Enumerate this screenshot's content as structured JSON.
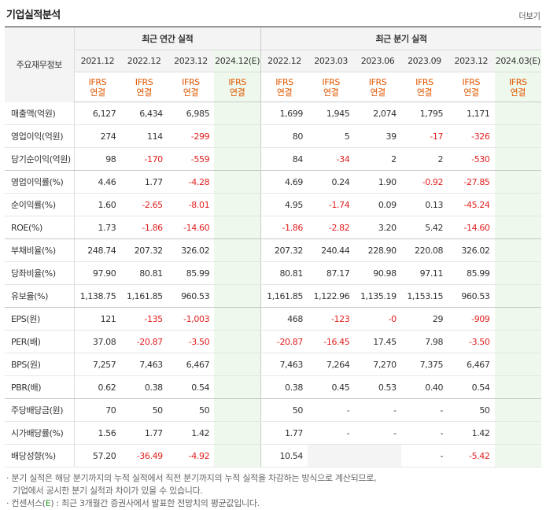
{
  "header": {
    "title": "기업실적분석",
    "more_label": "더보기"
  },
  "table": {
    "row_header_label": "주요재무정보",
    "groups": {
      "annual": "최근 연간 실적",
      "quarter": "최근 분기 실적"
    },
    "periods": [
      "2021.12",
      "2022.12",
      "2023.12",
      "2024.12(E)",
      "2022.12",
      "2023.03",
      "2023.06",
      "2023.09",
      "2023.12",
      "2024.03(E)"
    ],
    "ifrs_line1": "IFRS",
    "ifrs_line2": "연결",
    "rows": [
      {
        "label": "매출액(억원)",
        "values": [
          "6,127",
          "6,434",
          "6,985",
          "",
          "1,699",
          "1,945",
          "2,074",
          "1,795",
          "1,171",
          ""
        ]
      },
      {
        "label": "영업이익(억원)",
        "values": [
          "274",
          "114",
          "-299",
          "",
          "80",
          "5",
          "39",
          "-17",
          "-326",
          ""
        ]
      },
      {
        "label": "당기순이익(억원)",
        "values": [
          "98",
          "-170",
          "-559",
          "",
          "84",
          "-34",
          "2",
          "2",
          "-530",
          ""
        ]
      },
      {
        "label": "영업이익률(%)",
        "values": [
          "4.46",
          "1.77",
          "-4.28",
          "",
          "4.69",
          "0.24",
          "1.90",
          "-0.92",
          "-27.85",
          ""
        ]
      },
      {
        "label": "순이익률(%)",
        "values": [
          "1.60",
          "-2.65",
          "-8.01",
          "",
          "4.95",
          "-1.74",
          "0.09",
          "0.13",
          "-45.24",
          ""
        ]
      },
      {
        "label": "ROE(%)",
        "values": [
          "1.73",
          "-1.86",
          "-14.60",
          "",
          "-1.86",
          "-2.82",
          "3.20",
          "5.42",
          "-14.60",
          ""
        ]
      },
      {
        "label": "부채비율(%)",
        "values": [
          "248.74",
          "207.32",
          "326.02",
          "",
          "207.32",
          "240.44",
          "228.90",
          "220.08",
          "326.02",
          ""
        ]
      },
      {
        "label": "당좌비율(%)",
        "values": [
          "97.90",
          "80.81",
          "85.99",
          "",
          "80.81",
          "87.17",
          "90.98",
          "97.11",
          "85.99",
          ""
        ]
      },
      {
        "label": "유보율(%)",
        "values": [
          "1,138.75",
          "1,161.85",
          "960.53",
          "",
          "1,161.85",
          "1,122.96",
          "1,135.19",
          "1,153.15",
          "960.53",
          ""
        ]
      },
      {
        "label": "EPS(원)",
        "values": [
          "121",
          "-135",
          "-1,003",
          "",
          "468",
          "-123",
          "-0",
          "29",
          "-909",
          ""
        ]
      },
      {
        "label": "PER(배)",
        "values": [
          "37.08",
          "-20.87",
          "-3.50",
          "",
          "-20.87",
          "-16.45",
          "17.45",
          "7.98",
          "-3.50",
          ""
        ]
      },
      {
        "label": "BPS(원)",
        "values": [
          "7,257",
          "7,463",
          "6,467",
          "",
          "7,463",
          "7,264",
          "7,270",
          "7,375",
          "6,467",
          ""
        ]
      },
      {
        "label": "PBR(배)",
        "values": [
          "0.62",
          "0.38",
          "0.54",
          "",
          "0.38",
          "0.45",
          "0.53",
          "0.40",
          "0.54",
          ""
        ]
      },
      {
        "label": "주당배당금(원)",
        "values": [
          "70",
          "50",
          "50",
          "",
          "50",
          "-",
          "-",
          "-",
          "50",
          ""
        ]
      },
      {
        "label": "시가배당률(%)",
        "values": [
          "1.56",
          "1.77",
          "1.42",
          "",
          "1.77",
          "-",
          "-",
          "-",
          "1.42",
          ""
        ]
      },
      {
        "label": "배당성향(%)",
        "values": [
          "57.20",
          "-36.49",
          "-4.92",
          "",
          "10.54",
          "",
          "",
          "-",
          "-5.42",
          ""
        ]
      }
    ]
  },
  "notes": {
    "line1": "분기 실적은 해당 분기까지의 누적 실적에서 직전 분기까지의 누적 실적을 차감하는 방식으로 계산되므로,",
    "line2": "기업에서 공시한 분기 실적과 차이가 있을 수 있습니다.",
    "line3_prefix": "컨센서스(",
    "line3_e": "E",
    "line3_suffix": ") : 최근 3개월간 증권사에서 발표한 전망치의 평균값입니다."
  }
}
